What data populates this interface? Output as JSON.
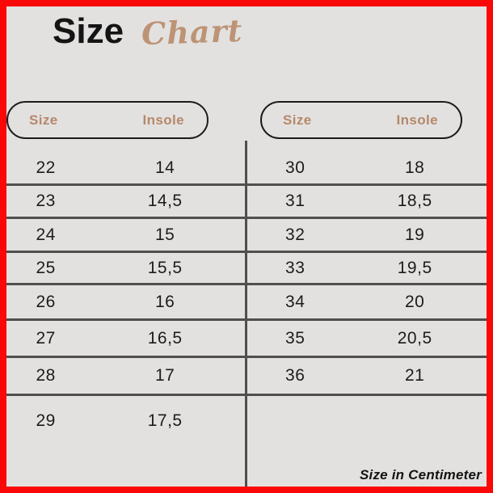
{
  "title": {
    "main": "Size",
    "script": "Chart"
  },
  "footnote": "Size in Centimeter",
  "colors": {
    "background": "#e3e1e0",
    "border_red": "#fa0808",
    "tan": "#b5886a",
    "line": "#4f4f4f",
    "text": "#1c1c1c"
  },
  "chart_data": {
    "type": "table",
    "title": "Size Chart",
    "unit_note": "Size in Centimeter",
    "tables": [
      {
        "headers": [
          "Size",
          "Insole"
        ],
        "rows": [
          [
            "22",
            "14"
          ],
          [
            "23",
            "14,5"
          ],
          [
            "24",
            "15"
          ],
          [
            "25",
            "15,5"
          ],
          [
            "26",
            "16"
          ],
          [
            "27",
            "16,5"
          ],
          [
            "28",
            "17"
          ],
          [
            "29",
            "17,5"
          ]
        ]
      },
      {
        "headers": [
          "Size",
          "Insole"
        ],
        "rows": [
          [
            "30",
            "18"
          ],
          [
            "31",
            "18,5"
          ],
          [
            "32",
            "19"
          ],
          [
            "33",
            "19,5"
          ],
          [
            "34",
            "20"
          ],
          [
            "35",
            "20,5"
          ],
          [
            "36",
            "21"
          ]
        ]
      }
    ]
  }
}
